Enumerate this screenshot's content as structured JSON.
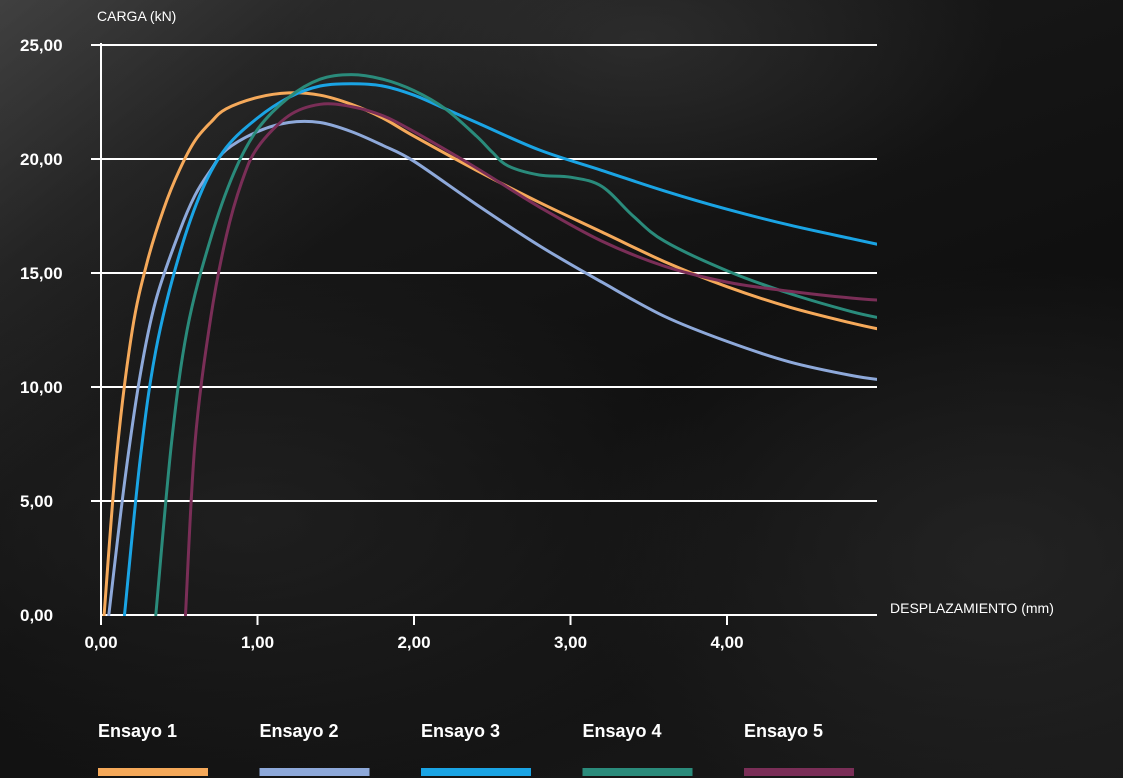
{
  "chart_data": {
    "type": "line",
    "ylabel": "CARGA (kN)",
    "xlabel": "DESPLAZAMIENTO (mm)",
    "xlim": [
      0,
      5.0
    ],
    "ylim": [
      0,
      25
    ],
    "x_ticks": [
      "0,00",
      "1,00",
      "2,00",
      "3,00",
      "4,00"
    ],
    "x_tick_values": [
      0,
      1,
      2,
      3,
      4
    ],
    "y_ticks": [
      "0,00",
      "5,00",
      "10,00",
      "15,00",
      "20,00",
      "25,00"
    ],
    "y_tick_values": [
      0,
      5,
      10,
      15,
      20,
      25
    ],
    "grid": "horizontal",
    "legend_position": "bottom",
    "series": [
      {
        "name": "Ensayo 1",
        "color": "#F5A95A",
        "points": [
          [
            0.02,
            0
          ],
          [
            0.1,
            7
          ],
          [
            0.2,
            12.5
          ],
          [
            0.3,
            15.6
          ],
          [
            0.4,
            17.8
          ],
          [
            0.5,
            19.5
          ],
          [
            0.6,
            20.8
          ],
          [
            0.7,
            21.6
          ],
          [
            0.8,
            22.2
          ],
          [
            1.0,
            22.7
          ],
          [
            1.2,
            22.9
          ],
          [
            1.4,
            22.8
          ],
          [
            1.6,
            22.4
          ],
          [
            1.8,
            21.8
          ],
          [
            2.0,
            21.0
          ],
          [
            2.4,
            19.5
          ],
          [
            2.8,
            18.1
          ],
          [
            3.2,
            16.8
          ],
          [
            3.6,
            15.5
          ],
          [
            4.0,
            14.4
          ],
          [
            4.4,
            13.5
          ],
          [
            4.8,
            12.8
          ],
          [
            5.0,
            12.5
          ]
        ]
      },
      {
        "name": "Ensayo 2",
        "color": "#8EA9DA",
        "points": [
          [
            0.05,
            0
          ],
          [
            0.15,
            5.8
          ],
          [
            0.25,
            10.5
          ],
          [
            0.35,
            13.8
          ],
          [
            0.5,
            16.8
          ],
          [
            0.6,
            18.4
          ],
          [
            0.7,
            19.5
          ],
          [
            0.8,
            20.4
          ],
          [
            1.0,
            21.2
          ],
          [
            1.2,
            21.6
          ],
          [
            1.4,
            21.6
          ],
          [
            1.6,
            21.2
          ],
          [
            1.8,
            20.6
          ],
          [
            2.0,
            19.9
          ],
          [
            2.4,
            18.0
          ],
          [
            2.8,
            16.2
          ],
          [
            3.2,
            14.6
          ],
          [
            3.6,
            13.1
          ],
          [
            4.0,
            12.0
          ],
          [
            4.4,
            11.1
          ],
          [
            4.8,
            10.5
          ],
          [
            5.0,
            10.3
          ]
        ]
      },
      {
        "name": "Ensayo 3",
        "color": "#1AA4E4",
        "points": [
          [
            0.15,
            0
          ],
          [
            0.25,
            6.8
          ],
          [
            0.35,
            11.6
          ],
          [
            0.5,
            15.8
          ],
          [
            0.65,
            18.7
          ],
          [
            0.8,
            20.5
          ],
          [
            1.0,
            21.8
          ],
          [
            1.2,
            22.7
          ],
          [
            1.4,
            23.2
          ],
          [
            1.6,
            23.3
          ],
          [
            1.8,
            23.2
          ],
          [
            2.0,
            22.8
          ],
          [
            2.2,
            22.2
          ],
          [
            2.4,
            21.6
          ],
          [
            2.8,
            20.4
          ],
          [
            3.2,
            19.5
          ],
          [
            3.6,
            18.6
          ],
          [
            4.0,
            17.8
          ],
          [
            4.4,
            17.1
          ],
          [
            4.8,
            16.5
          ],
          [
            5.0,
            16.2
          ]
        ]
      },
      {
        "name": "Ensayo 4",
        "color": "#2A8B7B",
        "points": [
          [
            0.35,
            0
          ],
          [
            0.45,
            7.5
          ],
          [
            0.55,
            12.5
          ],
          [
            0.7,
            16.5
          ],
          [
            0.85,
            19.4
          ],
          [
            1.0,
            21.3
          ],
          [
            1.2,
            22.7
          ],
          [
            1.4,
            23.5
          ],
          [
            1.6,
            23.7
          ],
          [
            1.8,
            23.5
          ],
          [
            2.0,
            23.0
          ],
          [
            2.2,
            22.2
          ],
          [
            2.4,
            21.0
          ],
          [
            2.5,
            20.3
          ],
          [
            2.6,
            19.7
          ],
          [
            2.8,
            19.3
          ],
          [
            3.0,
            19.2
          ],
          [
            3.2,
            18.8
          ],
          [
            3.4,
            17.5
          ],
          [
            3.6,
            16.4
          ],
          [
            4.0,
            15.1
          ],
          [
            4.4,
            14.1
          ],
          [
            4.8,
            13.3
          ],
          [
            5.0,
            13.0
          ]
        ]
      },
      {
        "name": "Ensayo 5",
        "color": "#7A2E57",
        "points": [
          [
            0.54,
            0
          ],
          [
            0.6,
            7.5
          ],
          [
            0.7,
            13.0
          ],
          [
            0.8,
            16.6
          ],
          [
            0.9,
            19.0
          ],
          [
            1.0,
            20.5
          ],
          [
            1.2,
            21.9
          ],
          [
            1.4,
            22.4
          ],
          [
            1.6,
            22.3
          ],
          [
            1.8,
            21.9
          ],
          [
            2.0,
            21.2
          ],
          [
            2.4,
            19.6
          ],
          [
            2.8,
            17.9
          ],
          [
            3.2,
            16.4
          ],
          [
            3.6,
            15.3
          ],
          [
            4.0,
            14.6
          ],
          [
            4.4,
            14.2
          ],
          [
            4.8,
            13.9
          ],
          [
            5.0,
            13.8
          ]
        ]
      }
    ]
  }
}
